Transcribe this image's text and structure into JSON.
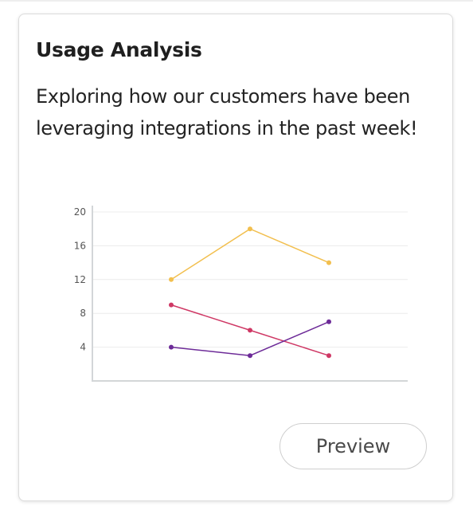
{
  "card": {
    "title": "Usage Analysis",
    "description": "Exploring how our customers have been leveraging integrations in the past week!"
  },
  "chart_data": {
    "type": "line",
    "title": "",
    "xlabel": "",
    "ylabel": "",
    "x": [
      1,
      2,
      3
    ],
    "xlim": [
      0,
      4
    ],
    "ylim": [
      0,
      20
    ],
    "yticks": [
      4,
      8,
      12,
      16,
      20
    ],
    "grid": true,
    "legend": "none",
    "series": [
      {
        "values": [
          12,
          18,
          14
        ],
        "color": "#f2bf4e"
      },
      {
        "values": [
          9,
          6,
          3
        ],
        "color": "#cf3865"
      },
      {
        "values": [
          4,
          3,
          7
        ],
        "color": "#6d2b98"
      }
    ]
  },
  "actions": {
    "preview_label": "Preview"
  }
}
